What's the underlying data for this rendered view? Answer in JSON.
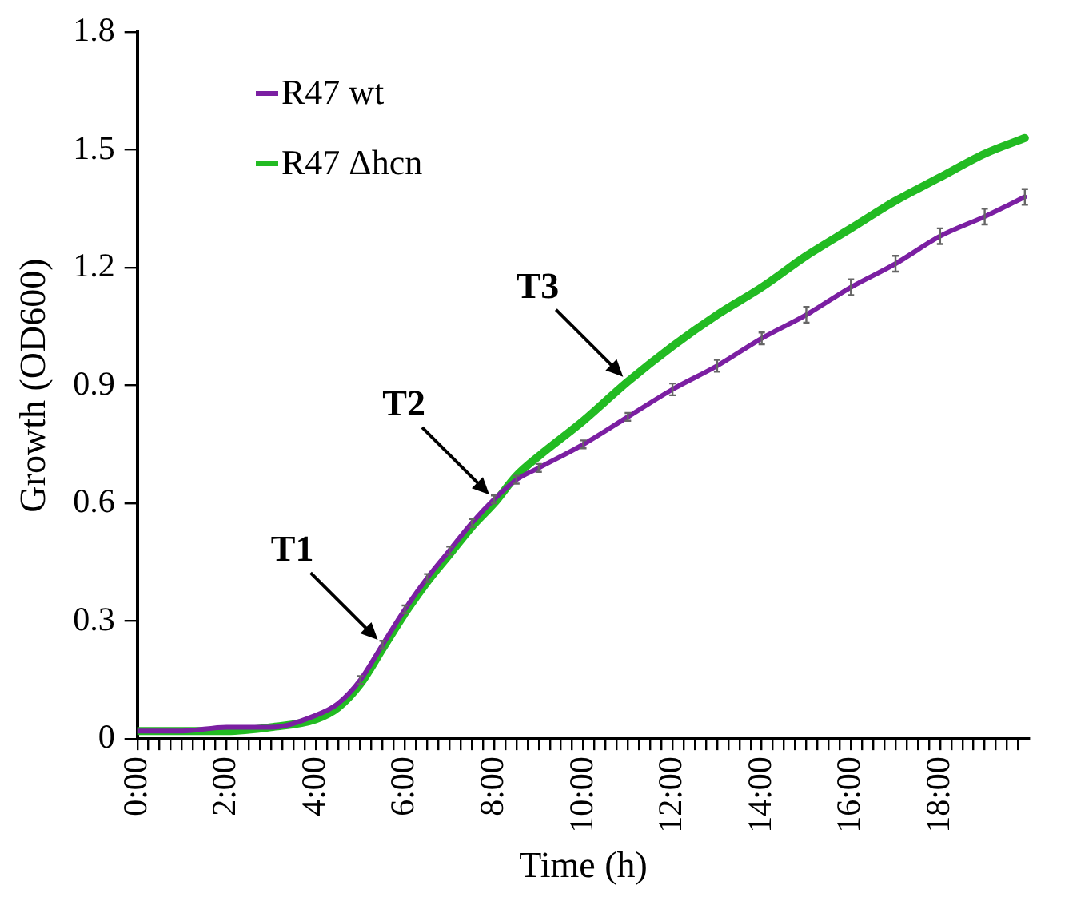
{
  "chart_data": {
    "type": "line",
    "xlabel": "Time (h)",
    "ylabel": "Growth (OD600)",
    "xlim": [
      0,
      20
    ],
    "ylim": [
      0,
      1.8
    ],
    "yticks": [
      0,
      0.3,
      0.6,
      0.9,
      1.2,
      1.5,
      1.8
    ],
    "xticks": [
      {
        "value": 0,
        "label": "0:00"
      },
      {
        "value": 0.25,
        "label": null
      },
      {
        "value": 0.5,
        "label": null
      },
      {
        "value": 0.75,
        "label": null
      },
      {
        "value": 1,
        "label": null
      },
      {
        "value": 1.25,
        "label": null
      },
      {
        "value": 1.5,
        "label": null
      },
      {
        "value": 1.75,
        "label": null
      },
      {
        "value": 2,
        "label": "2:00"
      },
      {
        "value": 2.25,
        "label": null
      },
      {
        "value": 2.5,
        "label": null
      },
      {
        "value": 2.75,
        "label": null
      },
      {
        "value": 3,
        "label": null
      },
      {
        "value": 3.25,
        "label": null
      },
      {
        "value": 3.5,
        "label": null
      },
      {
        "value": 3.75,
        "label": null
      },
      {
        "value": 4,
        "label": "4:00"
      },
      {
        "value": 4.25,
        "label": null
      },
      {
        "value": 4.5,
        "label": null
      },
      {
        "value": 4.75,
        "label": null
      },
      {
        "value": 5,
        "label": null
      },
      {
        "value": 5.25,
        "label": null
      },
      {
        "value": 5.5,
        "label": null
      },
      {
        "value": 5.75,
        "label": null
      },
      {
        "value": 6,
        "label": "6:00"
      },
      {
        "value": 6.25,
        "label": null
      },
      {
        "value": 6.5,
        "label": null
      },
      {
        "value": 6.75,
        "label": null
      },
      {
        "value": 7,
        "label": null
      },
      {
        "value": 7.25,
        "label": null
      },
      {
        "value": 7.5,
        "label": null
      },
      {
        "value": 7.75,
        "label": null
      },
      {
        "value": 8,
        "label": "8:00"
      },
      {
        "value": 8.25,
        "label": null
      },
      {
        "value": 8.5,
        "label": null
      },
      {
        "value": 8.75,
        "label": null
      },
      {
        "value": 9,
        "label": null
      },
      {
        "value": 9.25,
        "label": null
      },
      {
        "value": 9.5,
        "label": null
      },
      {
        "value": 9.75,
        "label": null
      },
      {
        "value": 10,
        "label": "10:00"
      },
      {
        "value": 10.25,
        "label": null
      },
      {
        "value": 10.5,
        "label": null
      },
      {
        "value": 10.75,
        "label": null
      },
      {
        "value": 11,
        "label": null
      },
      {
        "value": 11.25,
        "label": null
      },
      {
        "value": 11.5,
        "label": null
      },
      {
        "value": 11.75,
        "label": null
      },
      {
        "value": 12,
        "label": "12:00"
      },
      {
        "value": 12.25,
        "label": null
      },
      {
        "value": 12.5,
        "label": null
      },
      {
        "value": 12.75,
        "label": null
      },
      {
        "value": 13,
        "label": null
      },
      {
        "value": 13.25,
        "label": null
      },
      {
        "value": 13.5,
        "label": null
      },
      {
        "value": 13.75,
        "label": null
      },
      {
        "value": 14,
        "label": "14:00"
      },
      {
        "value": 14.25,
        "label": null
      },
      {
        "value": 14.5,
        "label": null
      },
      {
        "value": 14.75,
        "label": null
      },
      {
        "value": 15,
        "label": null
      },
      {
        "value": 15.25,
        "label": null
      },
      {
        "value": 15.5,
        "label": null
      },
      {
        "value": 15.75,
        "label": null
      },
      {
        "value": 16,
        "label": "16:00"
      },
      {
        "value": 16.25,
        "label": null
      },
      {
        "value": 16.5,
        "label": null
      },
      {
        "value": 16.75,
        "label": null
      },
      {
        "value": 17,
        "label": null
      },
      {
        "value": 17.25,
        "label": null
      },
      {
        "value": 17.5,
        "label": null
      },
      {
        "value": 17.75,
        "label": null
      },
      {
        "value": 18,
        "label": "18:00"
      },
      {
        "value": 18.25,
        "label": null
      },
      {
        "value": 18.5,
        "label": null
      },
      {
        "value": 18.75,
        "label": null
      },
      {
        "value": 19,
        "label": null
      },
      {
        "value": 19.25,
        "label": null
      },
      {
        "value": 19.5,
        "label": null
      },
      {
        "value": 19.75,
        "label": null
      }
    ],
    "x": [
      0,
      1,
      2,
      3,
      4,
      4.5,
      5,
      5.5,
      6,
      6.5,
      7,
      7.5,
      8,
      8.5,
      9,
      10,
      11,
      12,
      13,
      14,
      15,
      16,
      17,
      18,
      19,
      19.9
    ],
    "series": [
      {
        "name": "R47 wt",
        "color": "#7b1fa2",
        "values": [
          0.02,
          0.02,
          0.03,
          0.03,
          0.06,
          0.09,
          0.15,
          0.24,
          0.33,
          0.41,
          0.48,
          0.55,
          0.61,
          0.66,
          0.69,
          0.75,
          0.82,
          0.89,
          0.95,
          1.02,
          1.08,
          1.15,
          1.21,
          1.28,
          1.33,
          1.38
        ],
        "errors": [
          null,
          null,
          null,
          null,
          null,
          null,
          0.01,
          0.01,
          0.01,
          0.01,
          0.01,
          0.01,
          0.01,
          0.01,
          0.01,
          0.01,
          0.01,
          0.015,
          0.015,
          0.015,
          0.02,
          0.02,
          0.02,
          0.02,
          0.02,
          0.02
        ]
      },
      {
        "name": "R47 Δhcn",
        "color": "#22bb22",
        "values": [
          0.02,
          0.02,
          0.02,
          0.03,
          0.05,
          0.08,
          0.14,
          0.23,
          0.32,
          0.4,
          0.47,
          0.54,
          0.6,
          0.67,
          0.72,
          0.81,
          0.91,
          1.0,
          1.08,
          1.15,
          1.23,
          1.3,
          1.37,
          1.43,
          1.49,
          1.53
        ]
      }
    ],
    "annotations": [
      {
        "text": "T1",
        "x": 5.5,
        "y": 0.24
      },
      {
        "text": "T2",
        "x": 8,
        "y": 0.61
      },
      {
        "text": "T3",
        "x": 11,
        "y": 0.91
      }
    ],
    "legend": "top left",
    "line_style": "solid",
    "grid": false
  }
}
